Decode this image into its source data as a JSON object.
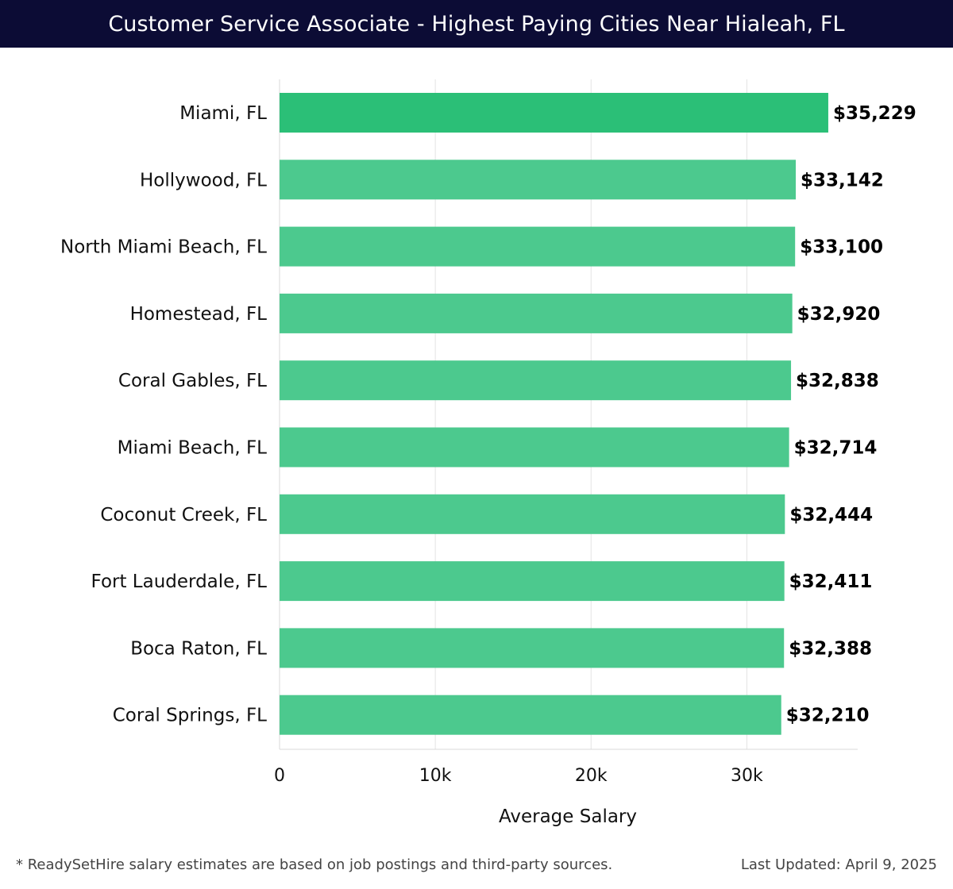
{
  "header": {
    "title": "Customer Service Associate - Highest Paying Cities Near Hialeah, FL"
  },
  "footer": {
    "note": "* ReadySetHire salary estimates are based on job postings and third-party sources.",
    "updated": "Last Updated: April 9, 2025"
  },
  "colors": {
    "header_bg": "#0c0c35",
    "top_bar": "#2bbf77",
    "bar": "#4cc98e",
    "grid": "#e3e3e3"
  },
  "chart_data": {
    "type": "bar",
    "orientation": "horizontal",
    "title": "Customer Service Associate - Highest Paying Cities Near Hialeah, FL",
    "xlabel": "Average Salary",
    "ylabel": "",
    "xlim": [
      0,
      37000
    ],
    "grid": true,
    "xticks": [
      0,
      10000,
      20000,
      30000
    ],
    "xtick_labels": [
      "0",
      "10k",
      "20k",
      "30k"
    ],
    "categories": [
      "Miami, FL",
      "Hollywood, FL",
      "North Miami Beach, FL",
      "Homestead, FL",
      "Coral Gables, FL",
      "Miami Beach, FL",
      "Coconut Creek, FL",
      "Fort Lauderdale, FL",
      "Boca Raton, FL",
      "Coral Springs, FL"
    ],
    "values": [
      35229,
      33142,
      33100,
      32920,
      32838,
      32714,
      32444,
      32411,
      32388,
      32210
    ],
    "value_labels": [
      "$35,229",
      "$33,142",
      "$33,100",
      "$32,920",
      "$32,838",
      "$32,714",
      "$32,444",
      "$32,411",
      "$32,388",
      "$32,210"
    ]
  }
}
